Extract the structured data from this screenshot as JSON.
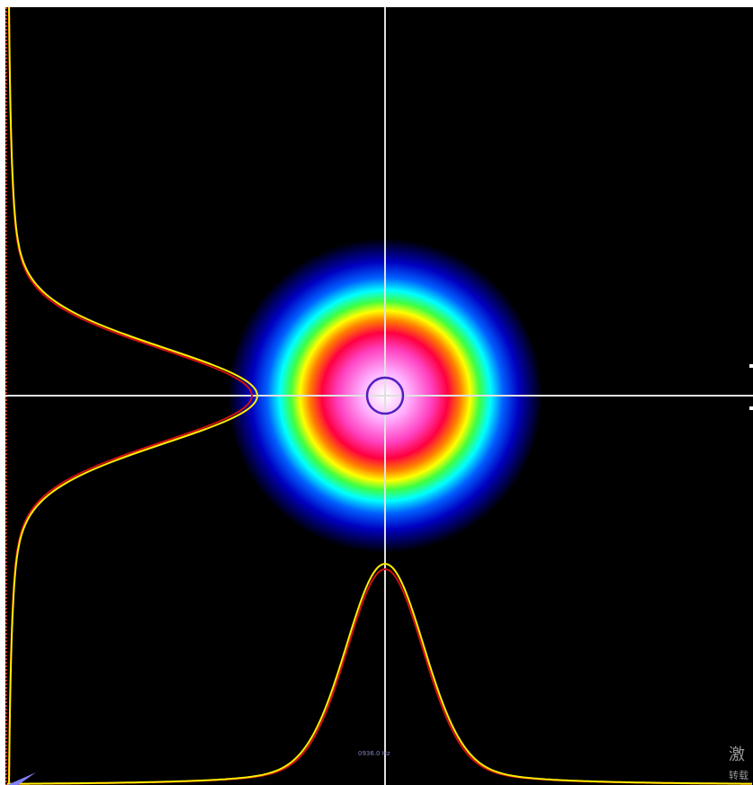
{
  "status": {
    "readout": "0936.0 Hz",
    "watermark_line1": "激",
    "watermark_line2": "转载"
  }
}
